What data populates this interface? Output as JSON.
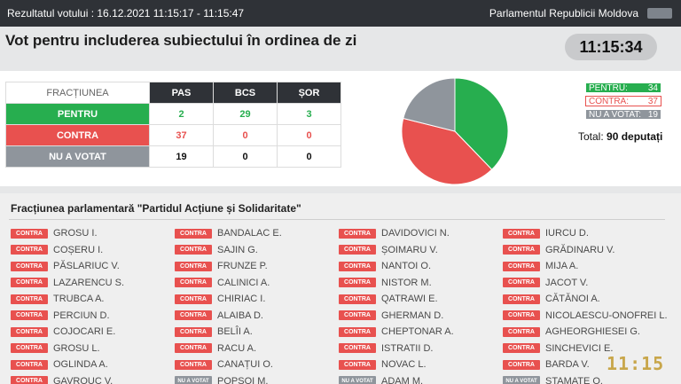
{
  "topbar": {
    "session": "Rezultatul votului : 16.12.2021 11:15:17 - 11:15:47",
    "parliament": "Parlamentul Republicii Moldova"
  },
  "header": {
    "title": "Vot pentru includerea subiectului în ordinea de zi",
    "clock": "11:15:34"
  },
  "results_table": {
    "header": "FRACȚIUNEA",
    "factions": [
      "PAS",
      "BCS",
      "ȘOR"
    ],
    "rows": [
      {
        "label": "PENTRU",
        "values": [
          "2",
          "29",
          "3"
        ]
      },
      {
        "label": "CONTRA",
        "values": [
          "37",
          "0",
          "0"
        ]
      },
      {
        "label": "NU A VOTAT",
        "values": [
          "19",
          "0",
          "0"
        ]
      }
    ]
  },
  "legend": {
    "pentru": {
      "label": "PENTRU:",
      "value": "34"
    },
    "contra": {
      "label": "CONTRA:",
      "value": "37"
    },
    "nuavotat": {
      "label": "NU A VOTAT:",
      "value": "19"
    },
    "total_label": "Total:",
    "total_value": "90 deputați"
  },
  "colors": {
    "pentru": "#27ae4f",
    "contra": "#e8514f",
    "nuavotat": "#8f959c"
  },
  "chart_data": {
    "type": "pie",
    "categories": [
      "PENTRU",
      "CONTRA",
      "NU A VOTAT"
    ],
    "values": [
      34,
      37,
      19
    ],
    "colors": [
      "#27ae4f",
      "#e8514f",
      "#8f959c"
    ]
  },
  "faction": {
    "title": "Fracțiunea parlamentară \"Partidul Acțiune și Solidaritate\"",
    "columns": [
      [
        {
          "badge": "CONTRA",
          "name": "GROSU I."
        },
        {
          "badge": "CONTRA",
          "name": "COȘERU I."
        },
        {
          "badge": "CONTRA",
          "name": "PĂSLARIUC V."
        },
        {
          "badge": "CONTRA",
          "name": "LAZARENCU S."
        },
        {
          "badge": "CONTRA",
          "name": "TRUBCA A."
        },
        {
          "badge": "CONTRA",
          "name": "PERCIUN D."
        },
        {
          "badge": "CONTRA",
          "name": "COJOCARI E."
        },
        {
          "badge": "CONTRA",
          "name": "GROSU L."
        },
        {
          "badge": "CONTRA",
          "name": "OGLINDA A."
        },
        {
          "badge": "CONTRA",
          "name": "GAVROUC V."
        }
      ],
      [
        {
          "badge": "CONTRA",
          "name": "BANDALAC E."
        },
        {
          "badge": "CONTRA",
          "name": "SAJIN G."
        },
        {
          "badge": "CONTRA",
          "name": "FRUNZE P."
        },
        {
          "badge": "CONTRA",
          "name": "CALINICI A."
        },
        {
          "badge": "CONTRA",
          "name": "CHIRIAC I."
        },
        {
          "badge": "CONTRA",
          "name": "ALAIBA D."
        },
        {
          "badge": "CONTRA",
          "name": "BELÎI A."
        },
        {
          "badge": "CONTRA",
          "name": "RACU A."
        },
        {
          "badge": "CONTRA",
          "name": "CANAȚUI O."
        },
        {
          "badge": "NU A VOTAT",
          "name": "POPȘOI M."
        }
      ],
      [
        {
          "badge": "CONTRA",
          "name": "DAVIDOVICI N."
        },
        {
          "badge": "CONTRA",
          "name": "ȘOIMARU V."
        },
        {
          "badge": "CONTRA",
          "name": "NANTOI O."
        },
        {
          "badge": "CONTRA",
          "name": "NISTOR M."
        },
        {
          "badge": "CONTRA",
          "name": "QATRAWI E."
        },
        {
          "badge": "CONTRA",
          "name": "GHERMAN D."
        },
        {
          "badge": "CONTRA",
          "name": "CHEPTONAR A."
        },
        {
          "badge": "CONTRA",
          "name": "ISTRATII D."
        },
        {
          "badge": "CONTRA",
          "name": "NOVAC L."
        },
        {
          "badge": "NU A VOTAT",
          "name": "ADAM M."
        }
      ],
      [
        {
          "badge": "CONTRA",
          "name": "IURCU D."
        },
        {
          "badge": "CONTRA",
          "name": "GRĂDINARU V."
        },
        {
          "badge": "CONTRA",
          "name": "MIJA A."
        },
        {
          "badge": "CONTRA",
          "name": "JACOT V."
        },
        {
          "badge": "CONTRA",
          "name": "CĂTĂNOI A."
        },
        {
          "badge": "CONTRA",
          "name": "NICOLAESCU-ONOFREI L."
        },
        {
          "badge": "CONTRA",
          "name": "AGHEORGHIESEI G."
        },
        {
          "badge": "CONTRA",
          "name": "SINCHEVICI E."
        },
        {
          "badge": "CONTRA",
          "name": "BARDA V."
        },
        {
          "badge": "NU A VOTAT",
          "name": "STAMATE O."
        }
      ]
    ]
  },
  "overlay_time": "11:15"
}
